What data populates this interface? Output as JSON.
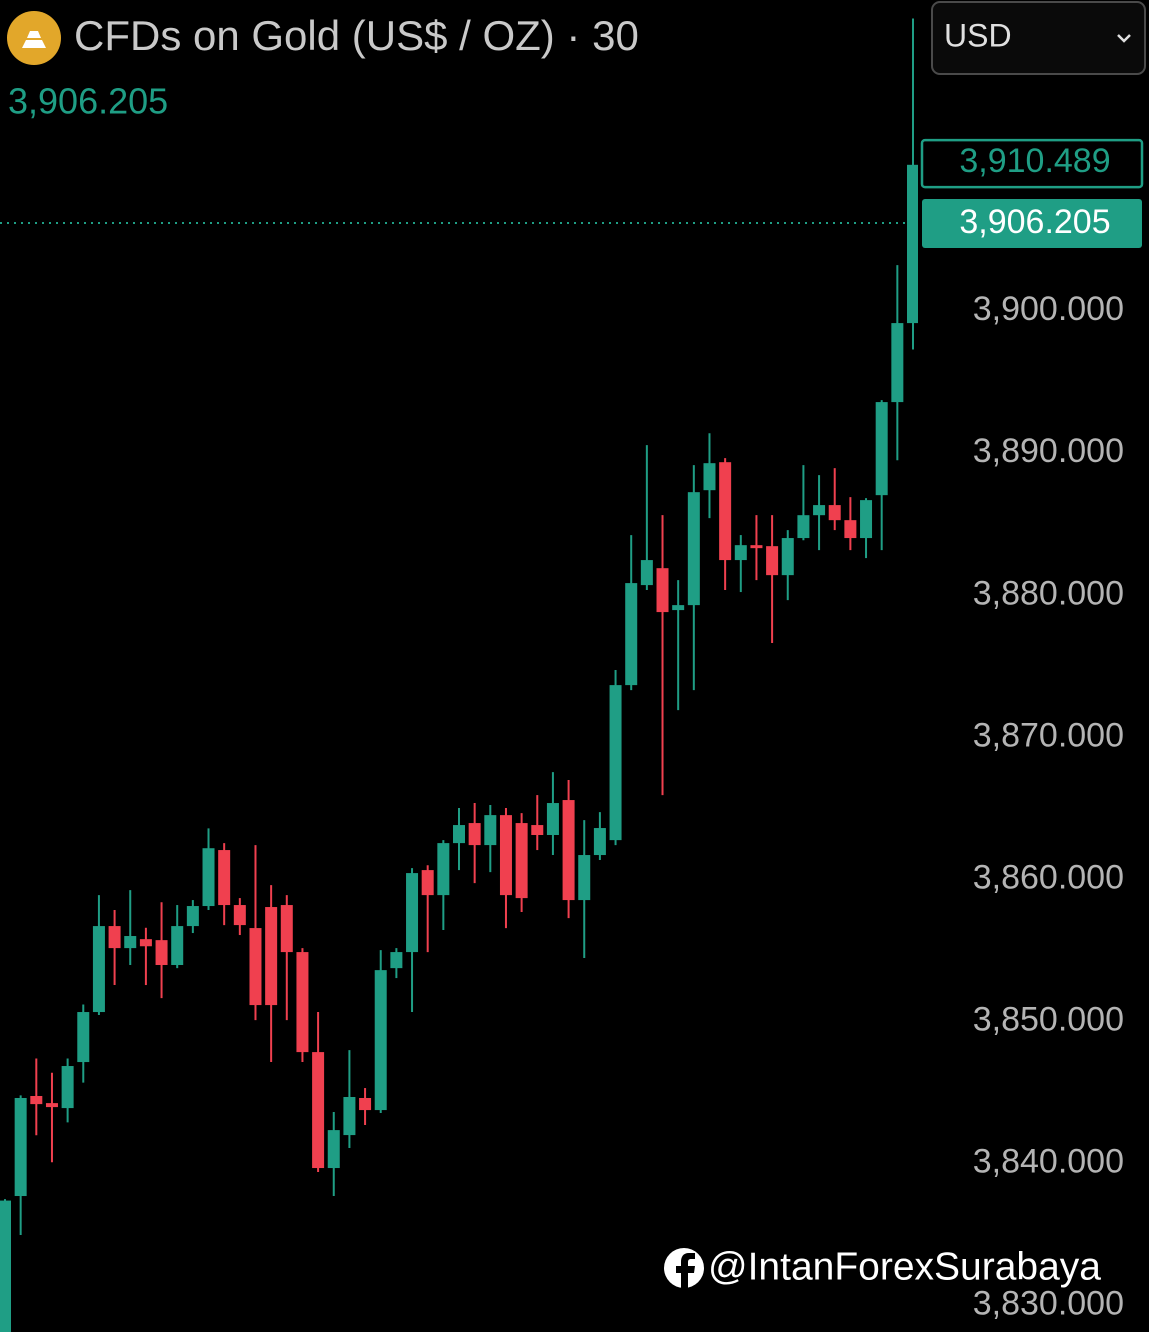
{
  "chart_data": {
    "type": "candlestick",
    "title": "CFDs on Gold (US$ / OZ) · 30",
    "last_price": "3,906.205",
    "currency": "USD",
    "watermark": "@IntanForexSurabaya",
    "up_color": "#1f9e85",
    "down_color": "#f0404f",
    "grid": false,
    "ylim": [
      3828.15,
      3921.9
    ],
    "yticks": [
      {
        "value": 3830,
        "label": "3,830.000"
      },
      {
        "value": 3840,
        "label": "3,840.000"
      },
      {
        "value": 3850,
        "label": "3,850.000"
      },
      {
        "value": 3860,
        "label": "3,860.000"
      },
      {
        "value": 3870,
        "label": "3,870.000"
      },
      {
        "value": 3880,
        "label": "3,880.000"
      },
      {
        "value": 3890,
        "label": "3,890.000"
      },
      {
        "value": 3900,
        "label": "3,900.000"
      }
    ],
    "price_markers": [
      {
        "value": 3910.489,
        "label": "3,910.489",
        "style": "outline"
      },
      {
        "value": 3906.205,
        "label": "3,906.205",
        "style": "filled"
      }
    ],
    "open": [
      3827.6,
      3837.72,
      3844.76,
      3844.26,
      3843.91,
      3847.15,
      3850.67,
      3856.72,
      3855.17,
      3855.8,
      3855.73,
      3853.98,
      3856.72,
      3858.13,
      3862.07,
      3858.2,
      3856.58,
      3858.06,
      3858.2,
      3854.89,
      3847.85,
      3839.69,
      3842.01,
      3844.62,
      3843.77,
      3853.76,
      3854.89,
      3860.66,
      3858.9,
      3862.56,
      3863.97,
      3862.42,
      3864.53,
      3863.97,
      3863.83,
      3863.13,
      3865.59,
      3858.55,
      3861.72,
      3862.77,
      3873.68,
      3880.72,
      3881.91,
      3878.96,
      3879.31,
      3887.4,
      3889.37,
      3882.48,
      3883.53,
      3883.46,
      3881.42,
      3884.03,
      3885.64,
      3886.35,
      3885.29,
      3884.03,
      3887.05,
      3893.6,
      3899.16
    ],
    "high": [
      3837.5,
      3844.8,
      3847.4,
      3846.4,
      3847.4,
      3851.2,
      3858.9,
      3857.85,
      3859.25,
      3856.6,
      3858.4,
      3858.2,
      3858.55,
      3863.6,
      3862.56,
      3858.69,
      3862.42,
      3859.6,
      3858.9,
      3855.17,
      3850.67,
      3843.63,
      3847.99,
      3845.32,
      3855.03,
      3855.17,
      3860.8,
      3861.0,
      3862.77,
      3865.03,
      3865.38,
      3865.24,
      3865.03,
      3864.67,
      3865.94,
      3867.56,
      3867.0,
      3864.18,
      3864.74,
      3874.74,
      3884.24,
      3890.57,
      3885.64,
      3881.07,
      3889.16,
      3891.41,
      3889.66,
      3884.24,
      3885.64,
      3885.64,
      3884.59,
      3889.16,
      3888.46,
      3888.95,
      3886.91,
      3886.84,
      3893.74,
      3903.24,
      3920.6
    ],
    "low": [
      3827.5,
      3834.98,
      3842.0,
      3840.1,
      3842.9,
      3845.7,
      3850.46,
      3852.57,
      3853.98,
      3852.57,
      3851.65,
      3853.76,
      3856.23,
      3857.85,
      3856.79,
      3856.09,
      3850.1,
      3847.15,
      3850.1,
      3847.15,
      3839.41,
      3837.72,
      3841.1,
      3842.72,
      3843.56,
      3853.06,
      3850.67,
      3854.89,
      3856.44,
      3860.66,
      3859.74,
      3860.52,
      3856.58,
      3857.71,
      3862.07,
      3861.72,
      3857.28,
      3854.47,
      3861.37,
      3862.42,
      3873.33,
      3880.37,
      3865.94,
      3871.92,
      3873.33,
      3885.43,
      3880.37,
      3880.23,
      3881.07,
      3876.64,
      3879.66,
      3883.88,
      3883.18,
      3884.59,
      3883.18,
      3882.62,
      3883.18,
      3889.51,
      3897.3
    ],
    "close": [
      3837.4,
      3844.62,
      3844.19,
      3843.98,
      3846.87,
      3850.67,
      3856.72,
      3855.17,
      3856.02,
      3855.3,
      3853.98,
      3856.72,
      3858.13,
      3862.2,
      3858.2,
      3856.79,
      3851.16,
      3851.16,
      3854.89,
      3847.85,
      3839.69,
      3842.36,
      3844.69,
      3843.77,
      3853.62,
      3854.89,
      3860.45,
      3858.9,
      3862.56,
      3863.83,
      3862.42,
      3864.53,
      3858.9,
      3858.69,
      3863.13,
      3865.38,
      3858.55,
      3861.72,
      3863.62,
      3873.68,
      3880.86,
      3882.48,
      3878.82,
      3879.31,
      3887.26,
      3889.3,
      3882.48,
      3883.53,
      3883.32,
      3881.42,
      3884.03,
      3885.64,
      3886.35,
      3885.29,
      3884.03,
      3886.7,
      3893.6,
      3899.16,
      3910.3
    ]
  }
}
